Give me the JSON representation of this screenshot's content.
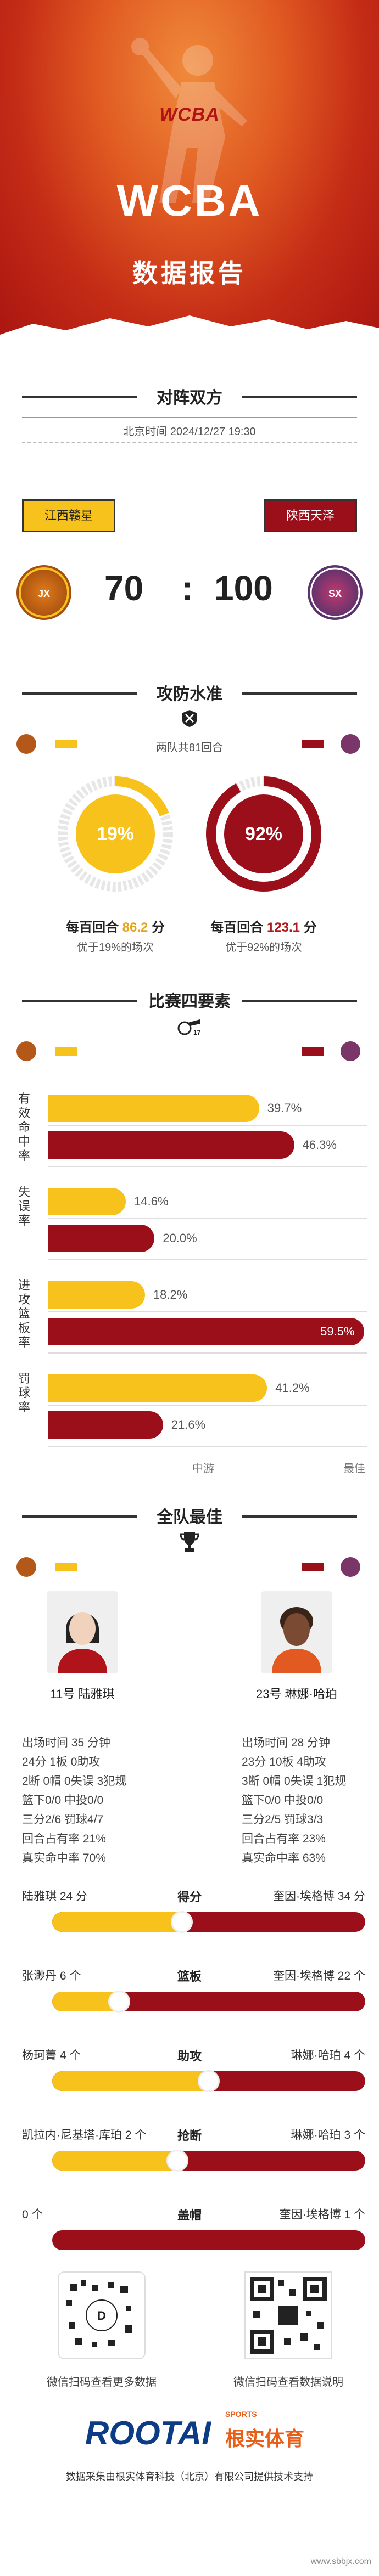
{
  "header": {
    "logo_text": "WCBA",
    "main_title": "WCBA",
    "sub_title": "数据报告"
  },
  "matchup": {
    "section_title": "对阵双方",
    "time": "北京时间 2024/12/27 19:30",
    "home_team": "江西赣星",
    "away_team": "陕西天泽",
    "home_score": "70",
    "separator": ":",
    "away_score": "100"
  },
  "offense_defense": {
    "section_title": "攻防水准",
    "note": "两队共81回合",
    "home_percent": "19%",
    "away_percent": "92%",
    "home_fraction": 0.19,
    "away_fraction": 0.92,
    "home_line_prefix": "每百回合",
    "home_value": "86.2",
    "home_unit": "分",
    "home_sub": "优于19%的场次",
    "away_line_prefix": "每百回合",
    "away_value": "123.1",
    "away_unit": "分",
    "away_sub": "优于92%的场次"
  },
  "four_factors": {
    "section_title": "比赛四要素",
    "rows": [
      {
        "label": "有效命中率",
        "home": "39.7%",
        "away": "46.3%",
        "home_frac": 0.397,
        "away_frac": 0.463
      },
      {
        "label": "失误率",
        "home": "14.6%",
        "away": "20.0%",
        "home_frac": 0.146,
        "away_frac": 0.2
      },
      {
        "label": "进攻篮板率",
        "home": "18.2%",
        "away": "59.5%",
        "home_frac": 0.182,
        "away_frac": 0.595
      },
      {
        "label": "罚球率",
        "home": "41.2%",
        "away": "21.6%",
        "home_frac": 0.412,
        "away_frac": 0.216
      }
    ],
    "axis_mid": "中游",
    "axis_best": "最佳"
  },
  "best": {
    "section_title": "全队最佳",
    "home_player": "11号 陆雅琪",
    "away_player": "23号 琳娜·哈珀",
    "home_stats": [
      "出场时间 35 分钟",
      "24分   1板   0助攻",
      "2断   0帽   0失误   3犯规",
      "篮下0/0   中投0/0",
      "三分2/6   罚球4/7",
      "回合占有率 21%",
      "真实命中率 70%"
    ],
    "away_stats": [
      "出场时间 28 分钟",
      "23分   10板   4助攻",
      "3断   0帽   0失误   1犯规",
      "篮下0/0   中投0/0",
      "三分2/5   罚球3/3",
      "回合占有率 23%",
      "真实命中率 63%"
    ],
    "compare": [
      {
        "category": "得分",
        "left": "陆雅琪 24 分",
        "right": "奎因·埃格博 34 分",
        "ratio": 0.414
      },
      {
        "category": "篮板",
        "left": "张渺丹 6 个",
        "right": "奎因·埃格博 22 个",
        "ratio": 0.214
      },
      {
        "category": "助攻",
        "left": "杨珂菁 4 个",
        "right": "琳娜·哈珀 4 个",
        "ratio": 0.5
      },
      {
        "category": "抢断",
        "left": "凯拉内·尼基塔·库珀 2 个",
        "right": "琳娜·哈珀 3 个",
        "ratio": 0.4
      },
      {
        "category": "盖帽",
        "left": "0 个",
        "right": "奎因·埃格博 1 个",
        "ratio": 0.0
      }
    ]
  },
  "qr": {
    "left_caption": "微信扫码查看更多数据",
    "right_caption": "微信扫码查看数据说明"
  },
  "footer": {
    "brand": "ROOTAI",
    "brand_sports": "SPORTS",
    "brand_cn": "根实体育",
    "text": "数据采集由根实体育科技（北京）有限公司提供技术支持",
    "watermark": "www.sbbjx.com"
  },
  "colors": {
    "home": "#f7c21b",
    "away": "#9a0f1a",
    "header": "#d2421c"
  }
}
